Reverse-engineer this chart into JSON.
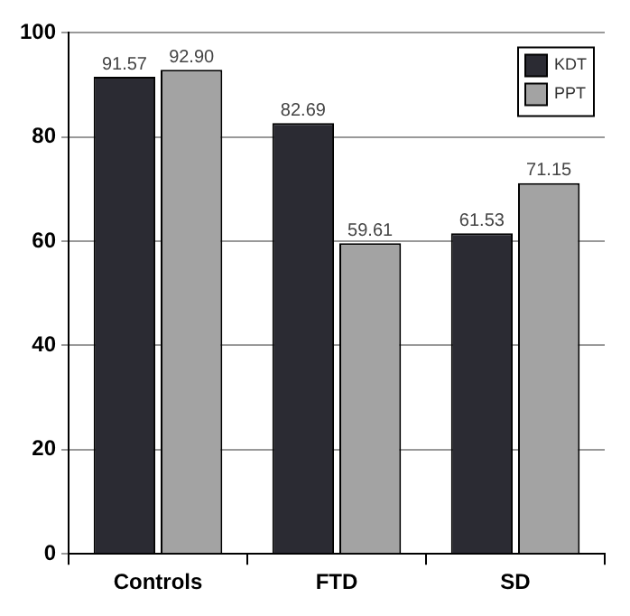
{
  "chart_data": {
    "type": "bar",
    "categories": [
      "Controls",
      "FTD",
      "SD"
    ],
    "series": [
      {
        "name": "KDT",
        "color": "#2b2b33",
        "values": [
          91.57,
          82.69,
          61.53
        ],
        "value_labels": [
          "91.57",
          "82.69",
          "61.53"
        ]
      },
      {
        "name": "PPT",
        "color": "#a3a3a3",
        "values": [
          92.9,
          59.61,
          71.15
        ],
        "value_labels": [
          "92.90",
          "59.61",
          "71.15"
        ]
      }
    ],
    "ylim": [
      0,
      100
    ],
    "yticks": [
      0,
      20,
      40,
      60,
      80,
      100
    ],
    "grid": "y",
    "legend": "top right"
  }
}
